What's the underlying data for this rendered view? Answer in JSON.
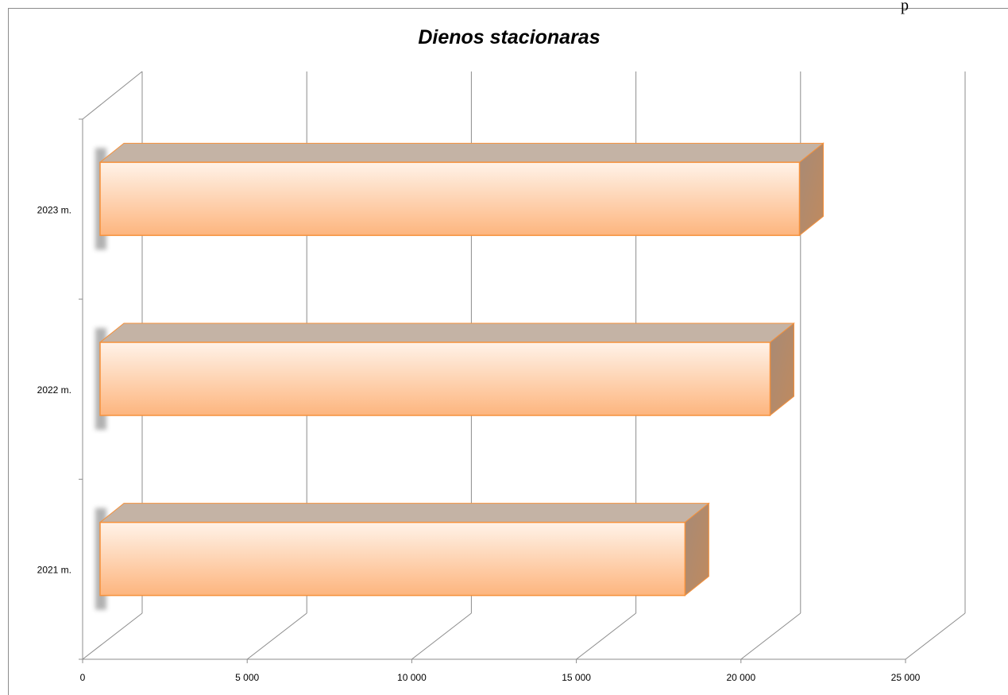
{
  "page": {
    "corner_text": "p"
  },
  "chart_data": {
    "type": "bar",
    "orientation": "horizontal",
    "style": "3d-clustered-bar",
    "title": "Dienos stacionaras",
    "categories": [
      "2021 m.",
      "2022 m.",
      "2023 m."
    ],
    "values": [
      18900,
      21650,
      22600
    ],
    "xlim": [
      0,
      25000
    ],
    "x_ticks": [
      0,
      5000,
      10000,
      15000,
      20000,
      25000
    ],
    "x_tick_labels": [
      "0",
      "5 000",
      "10 000",
      "15 000",
      "20 000",
      "25 000"
    ],
    "grid": true,
    "legend": "none",
    "colors": {
      "bar_front_top": "#fff3e9",
      "bar_front_bottom": "#fdb57e",
      "bar_edge": "#f6913b",
      "bar_top": "#c4b3a5",
      "bar_side": "#a78a76",
      "grid": "#8c8c8c"
    }
  }
}
